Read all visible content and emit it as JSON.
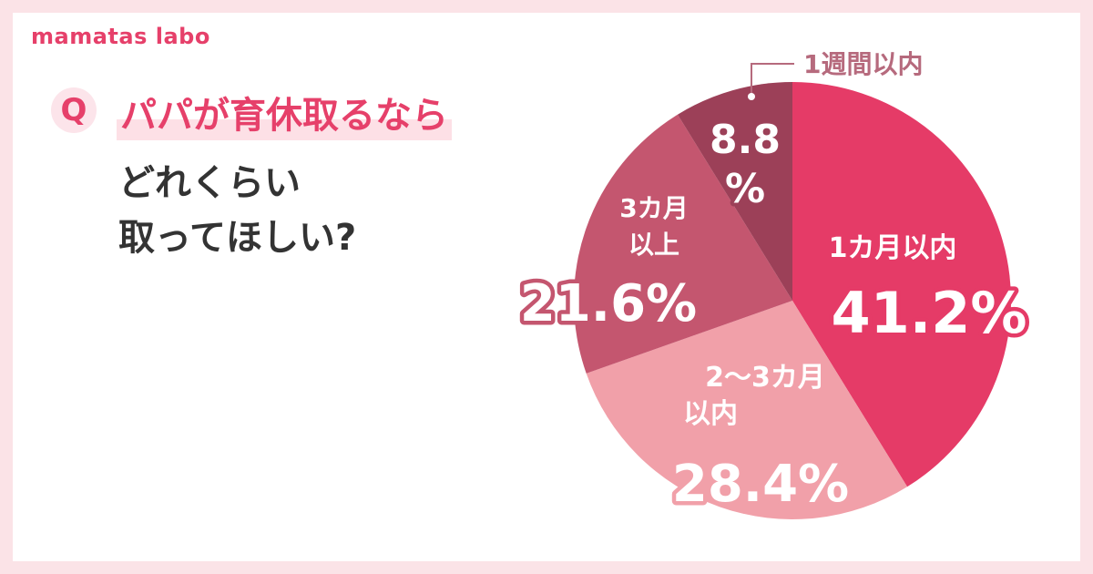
{
  "brand": "mamatas labo",
  "question": {
    "badge": "Q",
    "line1": "パパが育休取るなら",
    "line2": "どれくらい",
    "line3": "取ってほしい?"
  },
  "chart_data": {
    "type": "pie",
    "title": "パパが育休取るならどれくらい取ってほしい?",
    "unit": "%",
    "slices": [
      {
        "label": "1カ月以内",
        "label_lines": [
          "1カ月以内"
        ],
        "value": 41.2,
        "value_text": "41.2%",
        "color": "#e53b67"
      },
      {
        "label": "2〜3カ月以内",
        "label_lines": [
          "2〜3カ月",
          "以内"
        ],
        "value": 28.4,
        "value_text": "28.4%",
        "color": "#f1a0a9"
      },
      {
        "label": "3カ月以上",
        "label_lines": [
          "3カ月",
          "以上"
        ],
        "value": 21.6,
        "value_text": "21.6%",
        "color": "#c4566f"
      },
      {
        "label": "1週間以内",
        "label_lines": [
          "1週間以内"
        ],
        "value": 8.8,
        "value_text_lines": [
          "8.8",
          "%"
        ],
        "color": "#9c4058"
      }
    ],
    "start": "top",
    "direction": "clockwise"
  }
}
